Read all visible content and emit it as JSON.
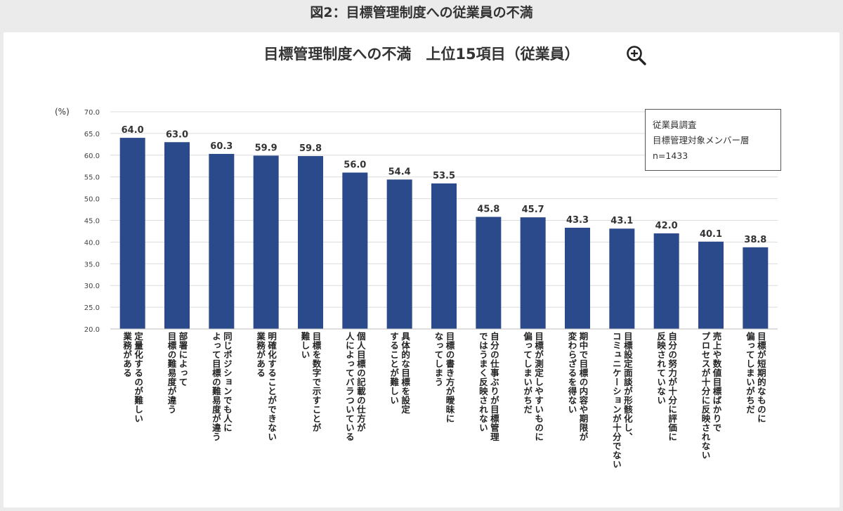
{
  "figure_caption": "図2：目標管理制度への従業員の不満",
  "chart_data": {
    "type": "bar",
    "title": "目標管理制度への不満　上位15項目（従業員）",
    "unit_label": "(%)",
    "ylim": [
      20,
      70
    ],
    "yticks": [
      "20.0",
      "25.0",
      "30.0",
      "35.0",
      "40.0",
      "45.0",
      "50.0",
      "55.0",
      "60.0",
      "65.0",
      "70.0"
    ],
    "grid": true,
    "bar_color": "#2b4a8b",
    "values": [
      64.0,
      63.0,
      60.3,
      59.9,
      59.8,
      56.0,
      54.4,
      53.5,
      45.8,
      45.7,
      43.3,
      43.1,
      42.0,
      40.1,
      38.8
    ],
    "value_labels": [
      "64.0",
      "63.0",
      "60.3",
      "59.9",
      "59.8",
      "56.0",
      "54.4",
      "53.5",
      "45.8",
      "45.7",
      "43.3",
      "43.1",
      "42.0",
      "40.1",
      "38.8"
    ],
    "categories": [
      [
        "定量化するのが難しい",
        "業務がある"
      ],
      [
        "部署によって",
        "目標の難易度が違う"
      ],
      [
        "同じポジションでも人に",
        "よって目標の難易度が違う"
      ],
      [
        "明確化することができない",
        "業務がある"
      ],
      [
        "目標を数字で示すことが",
        "難しい"
      ],
      [
        "個人目標の記載の仕方が",
        "人によってバラついている"
      ],
      [
        "具体的な目標を設定",
        "することが難しい"
      ],
      [
        "目標の書き方が曖昧に",
        "なってしまう"
      ],
      [
        "自分の仕事ぶりが目標管理",
        "ではうまく反映されない"
      ],
      [
        "目標が測定しやすいものに",
        "偏ってしまいがちだ"
      ],
      [
        "期中で目標の内容や期限が",
        "変わらざるを得ない"
      ],
      [
        "目標設定面談が形骸化し、",
        "コミュニケーションが十分でない"
      ],
      [
        "自分の努力が十分に評価に",
        "反映されていない"
      ],
      [
        "売上や数値目標ばかりで",
        "プロセスが十分に反映されない"
      ],
      [
        "目標が短期的なものに",
        "偏ってしまいがちだ"
      ]
    ],
    "note": [
      "従業員調査",
      "目標管理対象メンバー層",
      "n=1433"
    ]
  },
  "icons": {
    "zoom": "zoom-in-icon"
  }
}
